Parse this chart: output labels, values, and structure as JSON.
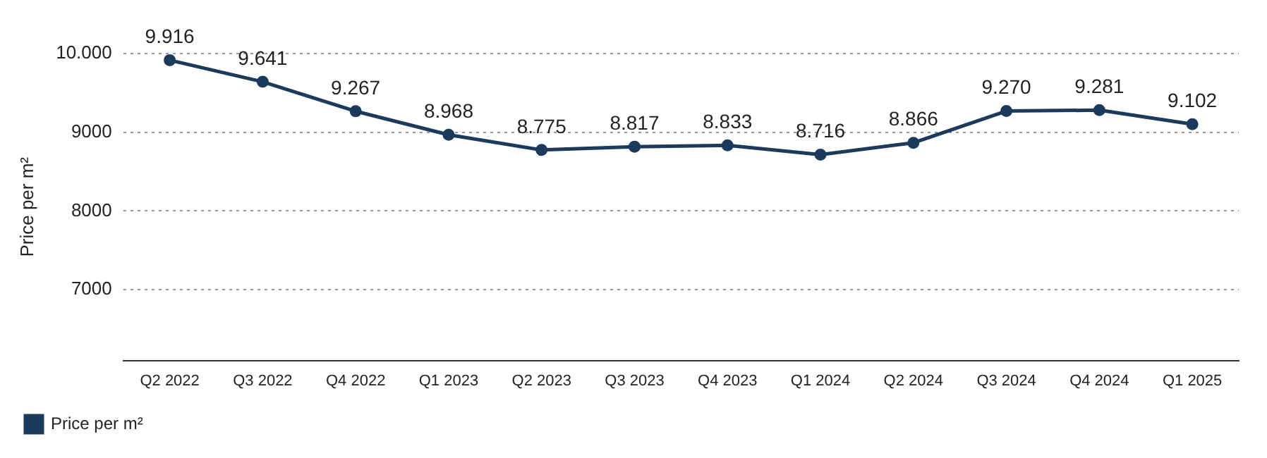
{
  "chart_data": {
    "type": "line",
    "ylabel": "Price per m²",
    "categories": [
      "Q2 2022",
      "Q3 2022",
      "Q4 2022",
      "Q1 2023",
      "Q2 2023",
      "Q3 2023",
      "Q4 2023",
      "Q1 2024",
      "Q2 2024",
      "Q3 2024",
      "Q4 2024",
      "Q1 2025"
    ],
    "series": [
      {
        "name": "Price per m²",
        "color": "#1b3a5c",
        "values": [
          9916,
          9641,
          9267,
          8968,
          8775,
          8817,
          8833,
          8716,
          8866,
          9270,
          9281,
          9102
        ],
        "value_labels": [
          "9.916",
          "9.641",
          "9.267",
          "8.968",
          "8.775",
          "8.817",
          "8.833",
          "8.716",
          "8.866",
          "9.270",
          "9.281",
          "9.102"
        ]
      }
    ],
    "ylim": [
      6100,
      10000
    ],
    "yticks": [
      7000,
      8000,
      9000,
      {
        "value": 10000,
        "label": "10.000"
      }
    ],
    "grid": "y",
    "legend": "bottom left",
    "marker": "circle",
    "line_style": "solid"
  }
}
